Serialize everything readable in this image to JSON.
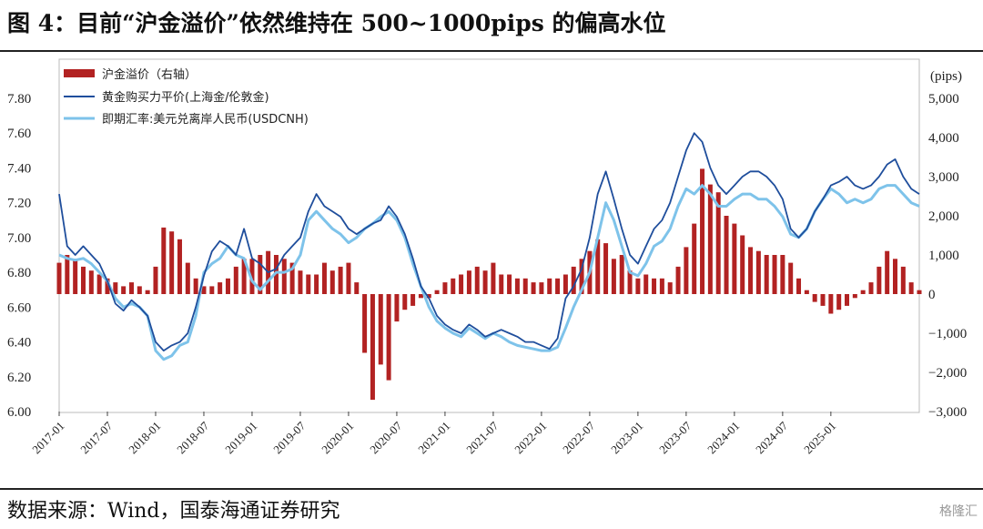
{
  "header": {
    "title": "图 4：目前“沪金溢价”依然维持在 500~1000pips 的偏高水位"
  },
  "footer": {
    "source": "数据来源：Wind，国泰海通证券研究",
    "watermark": "格隆汇"
  },
  "colors": {
    "premium": "#b22222",
    "gold_parity": "#1f4e9c",
    "usdcnh": "#7ec3ea"
  },
  "chart_data": {
    "type": "bar+line",
    "right_axis_unit": "(pips)",
    "y_left": {
      "lim": [
        6.0,
        7.8
      ],
      "ticks": [
        "7.80",
        "7.60",
        "7.40",
        "7.20",
        "7.00",
        "6.80",
        "6.60",
        "6.40",
        "6.20",
        "6.00"
      ]
    },
    "y_right": {
      "lim": [
        -3000,
        5000
      ],
      "ticks": [
        "5,000",
        "4,000",
        "3,000",
        "2,000",
        "1,000",
        "0",
        "−1,000",
        "−2,000",
        "−3,000"
      ]
    },
    "x_ticks": [
      "2017-01",
      "2017-07",
      "2018-01",
      "2018-07",
      "2019-01",
      "2019-07",
      "2020-01",
      "2020-07",
      "2021-01",
      "2021-07",
      "2022-01",
      "2022-07",
      "2023-01",
      "2023-07",
      "2024-01",
      "2024-07",
      "2025-01"
    ],
    "legend": [
      "沪金溢价（右轴）",
      "黄金购买力平价(上海金/伦敦金)",
      "即期汇率:美元兑离岸人民币(USDCNH)"
    ],
    "premium_pips_monthly": [
      800,
      1000,
      900,
      700,
      600,
      500,
      400,
      300,
      200,
      300,
      200,
      100,
      700,
      1700,
      1600,
      1400,
      800,
      400,
      200,
      200,
      300,
      400,
      700,
      900,
      900,
      1000,
      1100,
      1000,
      900,
      800,
      600,
      500,
      500,
      800,
      600,
      700,
      800,
      300,
      -1500,
      -2700,
      -1800,
      -2200,
      -700,
      -400,
      -300,
      -100,
      -100,
      100,
      300,
      400,
      500,
      600,
      700,
      600,
      800,
      500,
      500,
      400,
      400,
      300,
      300,
      400,
      400,
      500,
      700,
      900,
      1100,
      1400,
      1300,
      900,
      1000,
      600,
      400,
      500,
      400,
      400,
      300,
      700,
      1200,
      1800,
      3200,
      2800,
      2600,
      2000,
      1800,
      1500,
      1200,
      1100,
      1000,
      1000,
      1000,
      800,
      400,
      100,
      -200,
      -300,
      -500,
      -400,
      -300,
      -100,
      100,
      300,
      700,
      1100,
      900,
      700,
      300,
      100
    ],
    "gold_parity_monthly": [
      7.25,
      6.95,
      6.9,
      6.95,
      6.9,
      6.85,
      6.75,
      6.62,
      6.58,
      6.64,
      6.6,
      6.55,
      6.4,
      6.35,
      6.38,
      6.4,
      6.45,
      6.6,
      6.78,
      6.92,
      6.98,
      6.95,
      6.9,
      7.05,
      6.88,
      6.85,
      6.8,
      6.82,
      6.9,
      6.95,
      7.0,
      7.15,
      7.25,
      7.18,
      7.15,
      7.12,
      7.05,
      7.02,
      7.05,
      7.08,
      7.1,
      7.18,
      7.12,
      7.02,
      6.88,
      6.72,
      6.65,
      6.55,
      6.5,
      6.47,
      6.45,
      6.5,
      6.47,
      6.43,
      6.45,
      6.47,
      6.45,
      6.43,
      6.4,
      6.4,
      6.38,
      6.36,
      6.42,
      6.65,
      6.72,
      6.82,
      7.0,
      7.25,
      7.38,
      7.22,
      7.05,
      6.9,
      6.85,
      6.95,
      7.05,
      7.1,
      7.2,
      7.35,
      7.5,
      7.6,
      7.55,
      7.4,
      7.3,
      7.25,
      7.3,
      7.35,
      7.38,
      7.38,
      7.35,
      7.3,
      7.22,
      7.05,
      7.0,
      7.05,
      7.15,
      7.22,
      7.3,
      7.32,
      7.35,
      7.3,
      7.28,
      7.3,
      7.35,
      7.42,
      7.45,
      7.35,
      7.28,
      7.25
    ],
    "usdcnh_monthly": [
      6.9,
      6.88,
      6.87,
      6.88,
      6.85,
      6.8,
      6.75,
      6.65,
      6.6,
      6.62,
      6.6,
      6.55,
      6.35,
      6.3,
      6.32,
      6.38,
      6.4,
      6.55,
      6.8,
      6.85,
      6.88,
      6.95,
      6.9,
      6.88,
      6.75,
      6.7,
      6.75,
      6.8,
      6.8,
      6.82,
      6.9,
      7.1,
      7.15,
      7.1,
      7.05,
      7.02,
      6.97,
      7.0,
      7.05,
      7.08,
      7.12,
      7.15,
      7.1,
      7.0,
      6.85,
      6.72,
      6.6,
      6.52,
      6.48,
      6.45,
      6.43,
      6.48,
      6.45,
      6.42,
      6.45,
      6.43,
      6.4,
      6.38,
      6.37,
      6.36,
      6.35,
      6.35,
      6.37,
      6.48,
      6.6,
      6.7,
      6.8,
      7.0,
      7.2,
      7.1,
      6.95,
      6.8,
      6.78,
      6.85,
      6.95,
      6.98,
      7.05,
      7.18,
      7.28,
      7.25,
      7.3,
      7.25,
      7.18,
      7.18,
      7.22,
      7.25,
      7.25,
      7.22,
      7.22,
      7.18,
      7.12,
      7.02,
      7.0,
      7.05,
      7.15,
      7.22,
      7.28,
      7.25,
      7.2,
      7.22,
      7.2,
      7.22,
      7.28,
      7.3,
      7.3,
      7.25,
      7.2,
      7.18
    ]
  }
}
